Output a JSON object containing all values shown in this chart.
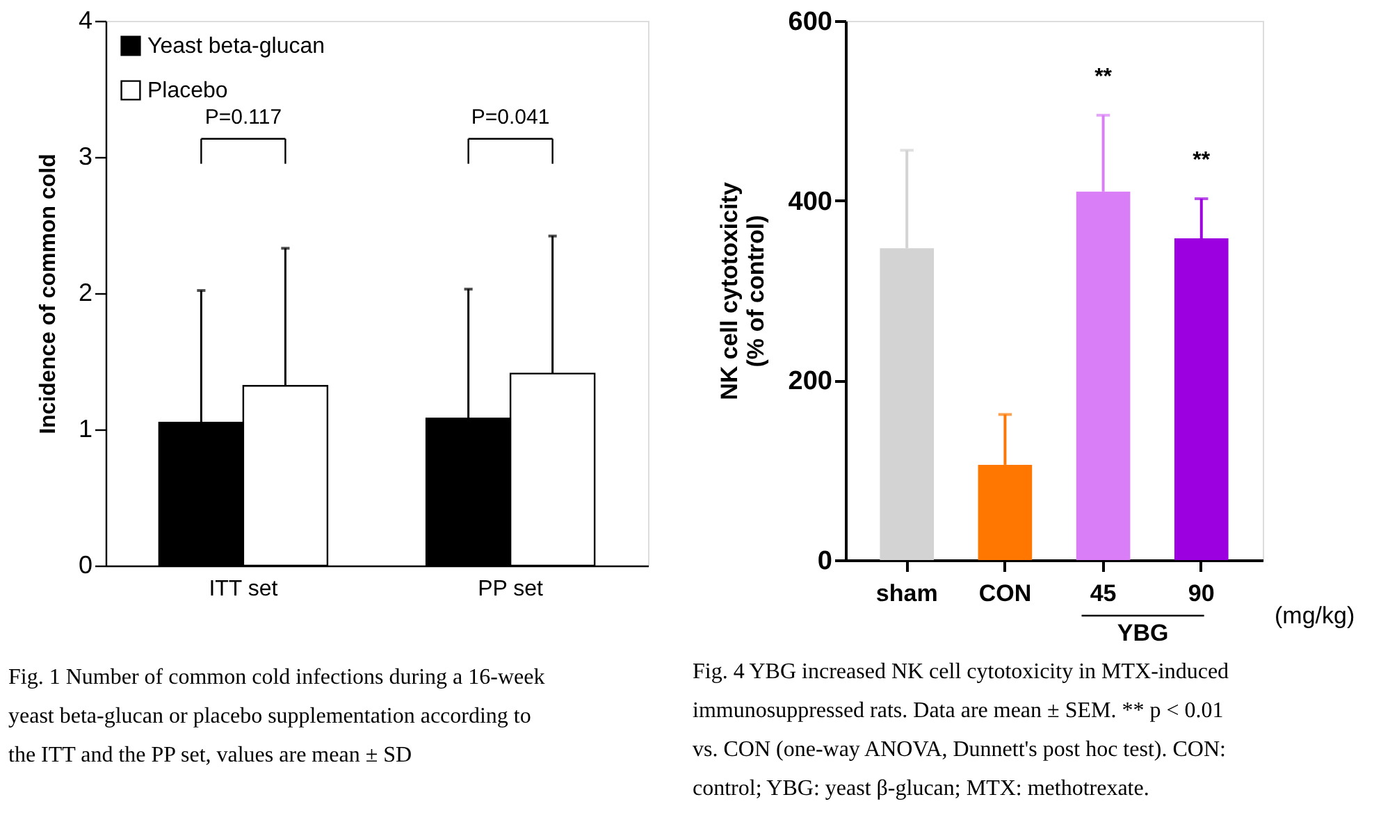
{
  "chart_data": [
    {
      "type": "bar",
      "categories": [
        "ITT set",
        "PP set"
      ],
      "ylabel": "Incidence of common cold",
      "ylim": [
        0,
        4
      ],
      "yticks": [
        0,
        1,
        2,
        3,
        4
      ],
      "grid": false,
      "legend": "top left",
      "series": [
        {
          "name": "Yeast beta-glucan",
          "color": "#000000",
          "values": [
            1.05,
            1.08
          ],
          "errors": [
            [
              1.05,
              2.02
            ],
            [
              1.08,
              2.03
            ]
          ]
        },
        {
          "name": "Placebo",
          "color": "#ffffff",
          "values": [
            1.32,
            1.41
          ],
          "errors": [
            [
              1.32,
              2.33
            ],
            [
              1.41,
              2.42
            ]
          ]
        }
      ],
      "annotations": [
        "P=0.117",
        "P=0.041",
        "Fig. 1 Number of common cold infections during a 16-week yeast beta-glucan or placebo supplementation according to the ITT and the PP set, values are mean ± SD"
      ]
    },
    {
      "type": "bar",
      "categories": [
        "sham",
        "CON",
        "45",
        "90"
      ],
      "xlabel": "(mg/kg)",
      "ylabel": "NK cell cytotoxicity\n(% of control)",
      "ylim": [
        0,
        600
      ],
      "yticks": [
        0,
        200,
        400,
        600
      ],
      "grid": false,
      "legend": false,
      "values": [
        347,
        106,
        410,
        358
      ],
      "colors": [
        "#d3d3d3",
        "#ff7700",
        "#d97ef7",
        "#9d00e0"
      ],
      "errors": [
        [
          347,
          456
        ],
        [
          106,
          162
        ],
        [
          410,
          495
        ],
        [
          358,
          402
        ]
      ],
      "annotations": [
        "**",
        "**",
        "YBG",
        "Fig. 4 YBG increased NK cell cytotoxicity in MTX-induced immunosuppressed rats. Data are mean ± SEM. ** p < 0.01 vs. CON (one-way ANOVA, Dunnett's post hoc test). CON: control; YBG: yeast β-glucan; MTX: methotrexate."
      ]
    }
  ]
}
